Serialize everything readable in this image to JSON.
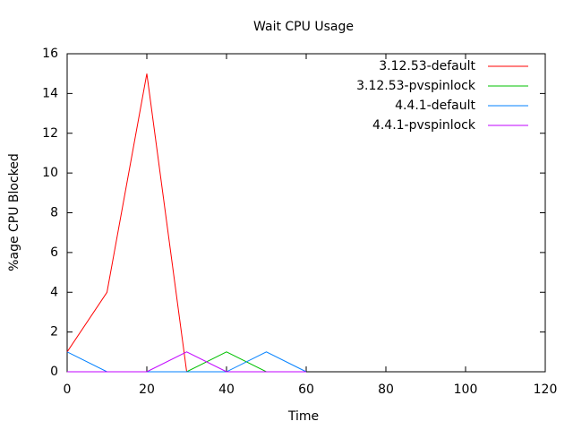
{
  "chart_data": {
    "type": "line",
    "title": "Wait CPU Usage",
    "x_label": "Time",
    "y_label": "%age CPU Blocked",
    "x": [
      0,
      10,
      20,
      30,
      40,
      50,
      60
    ],
    "series": [
      {
        "name": "3.12.53-default",
        "color": "#ff0000",
        "values": [
          1,
          4,
          15,
          0,
          0,
          0,
          0
        ]
      },
      {
        "name": "3.12.53-pvspinlock",
        "color": "#00c000",
        "values": [
          0,
          0,
          0,
          0,
          1,
          0,
          0
        ]
      },
      {
        "name": "4.4.1-default",
        "color": "#0080ff",
        "values": [
          1,
          0,
          0,
          0,
          0,
          1,
          0
        ]
      },
      {
        "name": "4.4.1-pvspinlock",
        "color": "#c000ff",
        "values": [
          0,
          0,
          0,
          1,
          0,
          0,
          0
        ]
      }
    ],
    "xlim": [
      0,
      120
    ],
    "xticks": [
      0,
      20,
      40,
      60,
      80,
      100,
      120
    ],
    "ylim": [
      0,
      16
    ],
    "yticks": [
      0,
      2,
      4,
      6,
      8,
      10,
      12,
      14,
      16
    ],
    "legend": "top-right"
  }
}
